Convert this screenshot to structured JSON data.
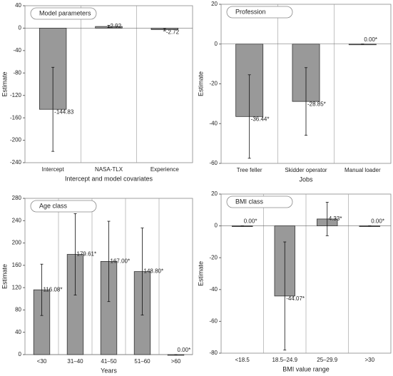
{
  "chart_data": [
    {
      "type": "bar",
      "title": "Model parameters",
      "x_label": "Intercept and model covariates",
      "y_label": "Estimate",
      "categories": [
        "Intercept",
        "NASA-TLX",
        "Experience"
      ],
      "values": [
        -144.83,
        2.92,
        -2.72
      ],
      "value_labels": [
        "-144.83",
        "2.92",
        "-2.72"
      ],
      "errors": [
        75,
        2,
        2
      ],
      "ylim": [
        -240,
        40
      ],
      "yticks": [
        -240,
        -200,
        -160,
        -120,
        -80,
        -40,
        0,
        40
      ],
      "color": "#999999",
      "grid": true
    },
    {
      "type": "bar",
      "title": "Profession",
      "x_label": "Jobs",
      "y_label": "Estimate",
      "categories": [
        "Tree feller",
        "Skidder operator",
        "Manual loader"
      ],
      "values": [
        -36.44,
        -28.85,
        0
      ],
      "value_labels": [
        "-36.44*",
        "-28.85*",
        "0.00*"
      ],
      "errors": [
        21,
        17,
        0
      ],
      "ylim": [
        -60,
        20
      ],
      "yticks": [
        -60,
        -40,
        -20,
        0,
        20
      ],
      "color": "#999999",
      "grid": true
    },
    {
      "type": "bar",
      "title": "Age class",
      "x_label": "Years",
      "y_label": "Estimate",
      "categories": [
        "<30",
        "31–40",
        "41–50",
        "51–60",
        ">60"
      ],
      "values": [
        116.08,
        179.61,
        167.0,
        148.8,
        0
      ],
      "value_labels": [
        "116.08*",
        "179.61*",
        "167.00*",
        "148.80*",
        "0.00*"
      ],
      "errors": [
        46,
        73,
        72,
        78,
        0
      ],
      "ylim": [
        0,
        280
      ],
      "yticks": [
        0,
        40,
        80,
        120,
        160,
        200,
        240,
        280
      ],
      "color": "#999999",
      "grid": true
    },
    {
      "type": "bar",
      "title": "BMI class",
      "x_label": "BMI value range",
      "y_label": "Estimate",
      "categories": [
        "<18.5",
        "18.5–24.9",
        "25–29.9",
        ">30"
      ],
      "values": [
        0,
        -44.07,
        4.33,
        0
      ],
      "value_labels": [
        "0.00*",
        "-44.07*",
        "4.33*",
        "0.00*"
      ],
      "errors": [
        0,
        34,
        10.5,
        0
      ],
      "ylim": [
        -80,
        20
      ],
      "yticks": [
        -80,
        -60,
        -40,
        -20,
        0,
        20
      ],
      "color": "#999999",
      "grid": true
    }
  ]
}
